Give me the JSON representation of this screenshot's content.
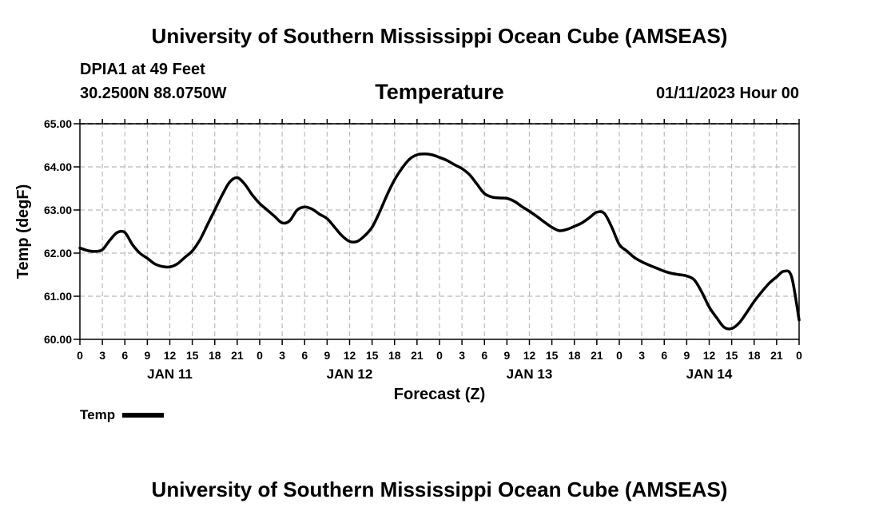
{
  "header": {
    "title": "University of Southern Mississippi Ocean Cube (AMSEAS)",
    "station": "DPIA1 at 49 Feet",
    "coords": "30.2500N  88.0750W",
    "variable": "Temperature",
    "datetime": "01/11/2023 Hour 00"
  },
  "footer": {
    "title": "University of Southern Mississippi Ocean Cube (AMSEAS)"
  },
  "legend": {
    "label": "Temp"
  },
  "chart_data": {
    "type": "line",
    "title": "Temperature",
    "xlabel": "Forecast (Z)",
    "ylabel": "Temp (degF)",
    "xlim": [
      0,
      96
    ],
    "ylim": [
      60,
      65
    ],
    "y_ticks": [
      "60.00",
      "61.00",
      "62.00",
      "63.00",
      "64.00",
      "65.00"
    ],
    "y_tick_values": [
      60,
      61,
      62,
      63,
      64,
      65
    ],
    "x_ticks": [
      "0",
      "3",
      "6",
      "9",
      "12",
      "15",
      "18",
      "21",
      "0",
      "3",
      "6",
      "9",
      "12",
      "15",
      "18",
      "21",
      "0",
      "3",
      "6",
      "9",
      "12",
      "15",
      "18",
      "21",
      "0",
      "3",
      "6",
      "9",
      "12",
      "15",
      "18",
      "21",
      "0"
    ],
    "x_tick_hours": [
      0,
      3,
      6,
      9,
      12,
      15,
      18,
      21,
      24,
      27,
      30,
      33,
      36,
      39,
      42,
      45,
      48,
      51,
      54,
      57,
      60,
      63,
      66,
      69,
      72,
      75,
      78,
      81,
      84,
      87,
      90,
      93,
      96
    ],
    "day_labels": [
      "JAN 11",
      "JAN 12",
      "JAN 13",
      "JAN 14"
    ],
    "day_label_hours": [
      12,
      36,
      60,
      84
    ],
    "grid": true,
    "series": [
      {
        "name": "Temp",
        "x": [
          0,
          1,
          2,
          3,
          4,
          5,
          6,
          7,
          8,
          9,
          10,
          11,
          12,
          13,
          14,
          15,
          16,
          17,
          18,
          19,
          20,
          21,
          22,
          23,
          24,
          25,
          26,
          27,
          28,
          29,
          30,
          31,
          32,
          33,
          34,
          35,
          36,
          37,
          38,
          39,
          40,
          41,
          42,
          43,
          44,
          45,
          46,
          47,
          48,
          49,
          50,
          51,
          52,
          53,
          54,
          55,
          56,
          57,
          58,
          59,
          60,
          61,
          62,
          63,
          64,
          65,
          66,
          67,
          68,
          69,
          70,
          71,
          72,
          73,
          74,
          75,
          76,
          77,
          78,
          79,
          80,
          81,
          82,
          83,
          84,
          85,
          86,
          87,
          88,
          89,
          90,
          91,
          92,
          93,
          94,
          95,
          96
        ],
        "values": [
          62.12,
          62.06,
          62.04,
          62.08,
          62.3,
          62.48,
          62.48,
          62.2,
          62.0,
          61.88,
          61.75,
          61.69,
          61.68,
          61.75,
          61.9,
          62.05,
          62.3,
          62.65,
          63.0,
          63.35,
          63.65,
          63.75,
          63.6,
          63.35,
          63.15,
          63.0,
          62.85,
          62.7,
          62.75,
          63.0,
          63.07,
          63.02,
          62.9,
          62.8,
          62.6,
          62.4,
          62.27,
          62.27,
          62.4,
          62.6,
          62.95,
          63.35,
          63.7,
          63.97,
          64.18,
          64.28,
          64.3,
          64.28,
          64.22,
          64.15,
          64.05,
          63.96,
          63.82,
          63.6,
          63.38,
          63.3,
          63.28,
          63.27,
          63.2,
          63.08,
          62.97,
          62.85,
          62.72,
          62.6,
          62.52,
          62.55,
          62.62,
          62.7,
          62.82,
          62.95,
          62.92,
          62.6,
          62.2,
          62.05,
          61.9,
          61.8,
          61.72,
          61.65,
          61.58,
          61.53,
          61.5,
          61.47,
          61.38,
          61.1,
          60.75,
          60.5,
          60.28,
          60.25,
          60.38,
          60.62,
          60.88,
          61.1,
          61.3,
          61.45,
          61.58,
          61.45,
          60.45
        ]
      }
    ]
  }
}
